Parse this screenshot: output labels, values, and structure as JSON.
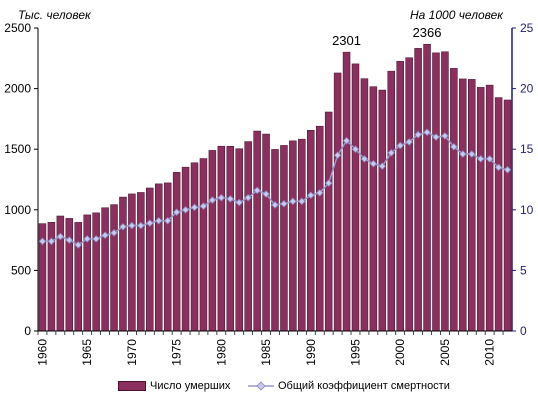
{
  "chart_data": {
    "type": "bar",
    "left_unit_label": "Тыс. человек",
    "right_unit_label": "На 1000 человек",
    "categories": [
      1960,
      1961,
      1962,
      1963,
      1964,
      1965,
      1966,
      1967,
      1968,
      1969,
      1970,
      1971,
      1972,
      1973,
      1974,
      1975,
      1976,
      1977,
      1978,
      1979,
      1980,
      1981,
      1982,
      1983,
      1984,
      1985,
      1986,
      1987,
      1988,
      1989,
      1990,
      1991,
      1992,
      1993,
      1994,
      1995,
      1996,
      1997,
      1998,
      1999,
      2000,
      2001,
      2002,
      2003,
      2004,
      2005,
      2006,
      2007,
      2008,
      2009,
      2010,
      2011,
      2012
    ],
    "x_tick_labels": [
      "1960",
      "1965",
      "1970",
      "1975",
      "1980",
      "1985",
      "1990",
      "1995",
      "2000",
      "2005",
      "2010"
    ],
    "x_tick_years": [
      1960,
      1965,
      1970,
      1975,
      1980,
      1985,
      1990,
      1995,
      2000,
      2005,
      2010
    ],
    "y_left": {
      "min": 0,
      "max": 2500,
      "ticks": [
        "0",
        "500",
        "1000",
        "1500",
        "2000",
        "2500"
      ]
    },
    "y_right": {
      "min": 0,
      "max": 25,
      "ticks": [
        "0",
        "5",
        "10",
        "15",
        "20",
        "25"
      ]
    },
    "series": [
      {
        "name": "Число умерших",
        "axis": "left",
        "kind": "bar",
        "color": "#8B2F5F",
        "values": [
          886,
          897,
          949,
          929,
          896,
          958,
          975,
          1017,
          1043,
          1105,
          1131,
          1143,
          1180,
          1214,
          1222,
          1309,
          1352,
          1388,
          1423,
          1490,
          1525,
          1524,
          1504,
          1563,
          1650,
          1625,
          1498,
          1531,
          1569,
          1583,
          1656,
          1690,
          1807,
          2129,
          2301,
          2204,
          2082,
          2016,
          1988,
          2144,
          2225,
          2255,
          2332,
          2366,
          2295,
          2304,
          2167,
          2080,
          2076,
          2010,
          2029,
          1926,
          1906
        ]
      },
      {
        "name": "Общий коэффициент смертности",
        "axis": "right",
        "kind": "line",
        "color": "#9999CC",
        "marker_color": "#C8C8F0",
        "values": [
          7.4,
          7.4,
          7.8,
          7.5,
          7.1,
          7.6,
          7.6,
          7.9,
          8.1,
          8.6,
          8.7,
          8.7,
          8.9,
          9.1,
          9.1,
          9.8,
          10.0,
          10.2,
          10.3,
          10.8,
          11.0,
          10.9,
          10.6,
          11.0,
          11.6,
          11.3,
          10.4,
          10.5,
          10.7,
          10.7,
          11.2,
          11.4,
          12.2,
          14.5,
          15.7,
          15.0,
          14.2,
          13.8,
          13.6,
          14.7,
          15.3,
          15.6,
          16.2,
          16.4,
          16.0,
          16.1,
          15.2,
          14.6,
          14.6,
          14.2,
          14.2,
          13.5,
          13.3
        ]
      }
    ],
    "annotations": [
      {
        "year": 1994,
        "text": "2301"
      },
      {
        "year": 2003,
        "text": "2366"
      }
    ],
    "grid": false,
    "legend_position": "bottom"
  },
  "legend": {
    "bar_label": "Число умерших",
    "line_label": "Общий коэффициент смертности"
  }
}
